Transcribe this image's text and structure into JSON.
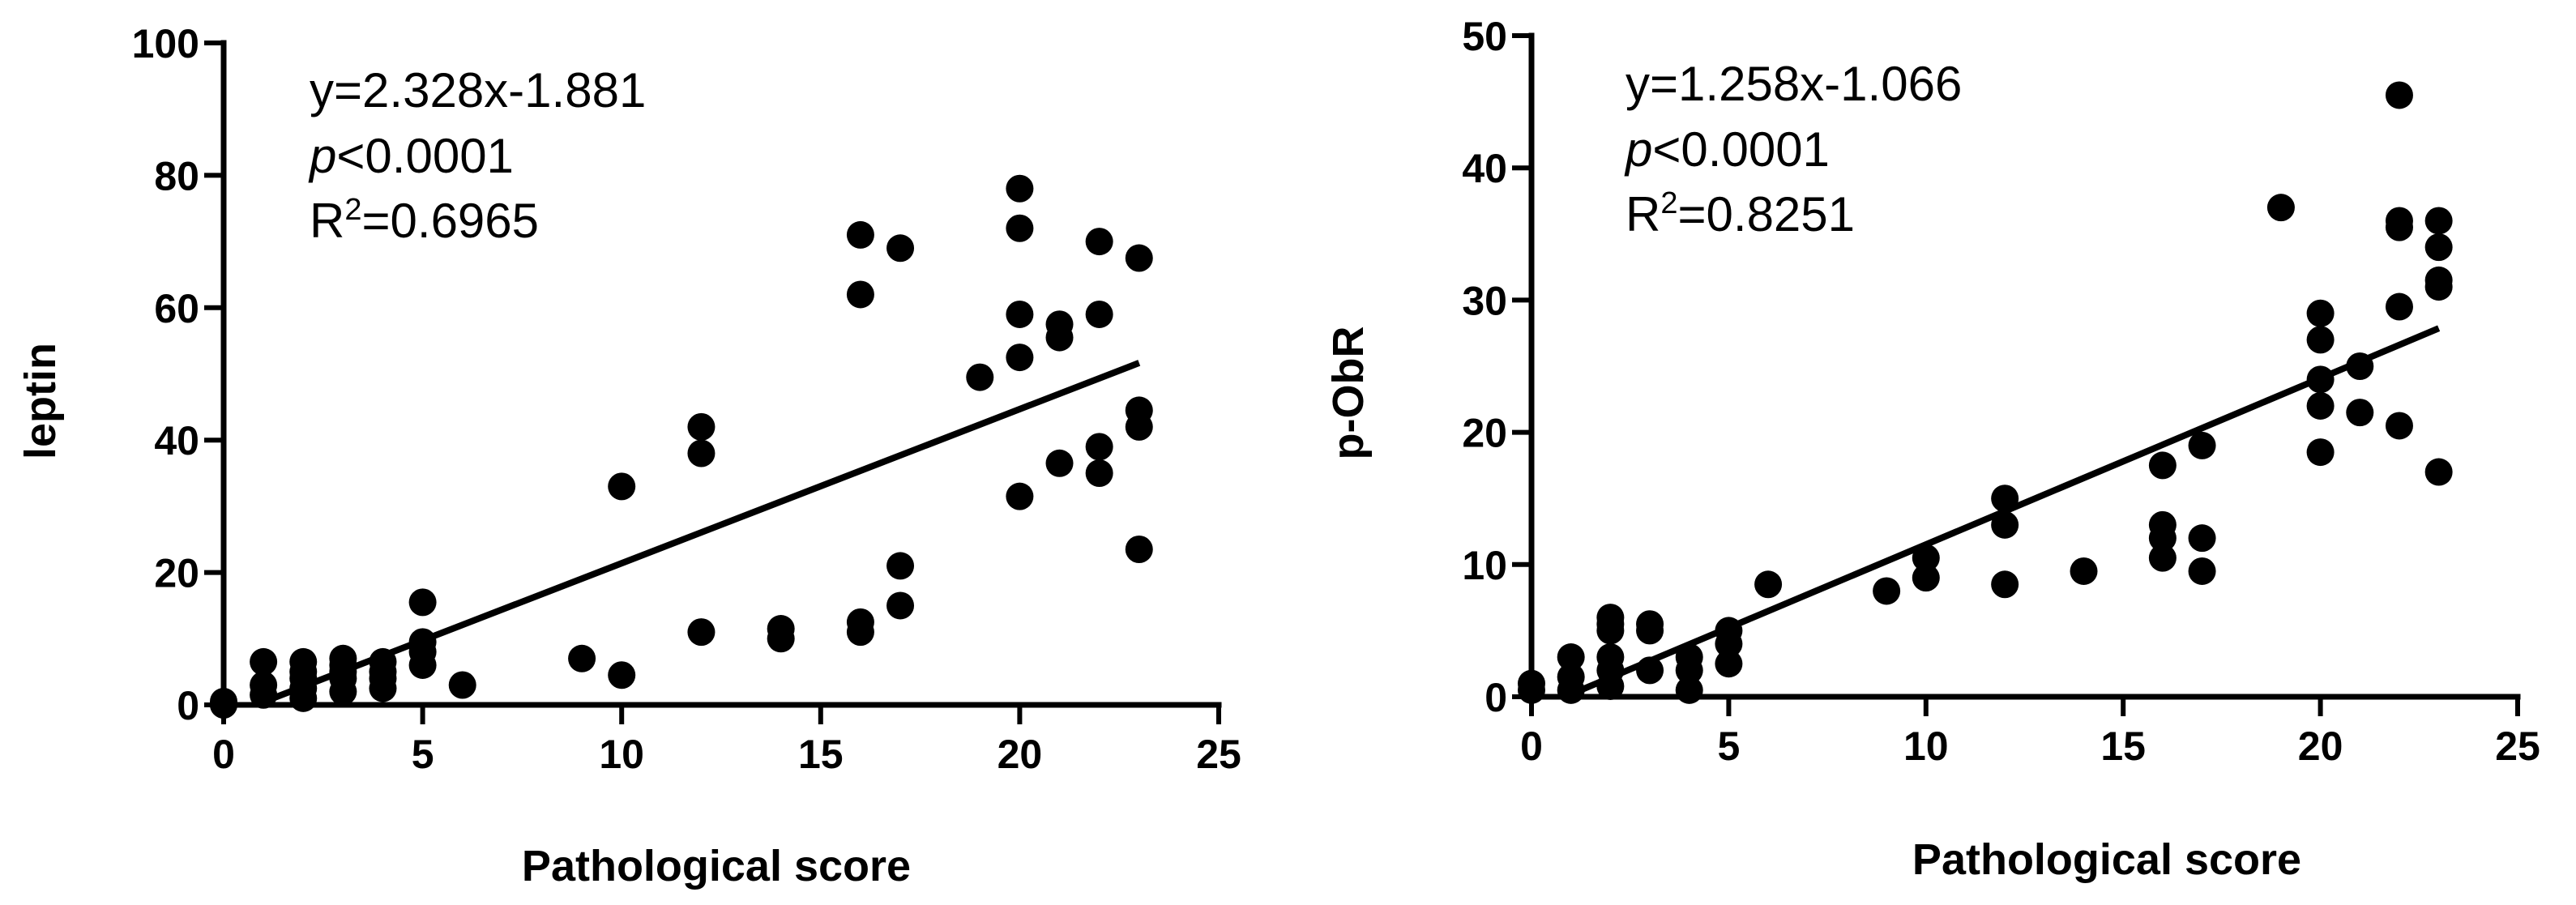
{
  "chart_data": [
    {
      "type": "scatter",
      "xlabel": "Pathological score",
      "ylabel": "leptin",
      "xlim": [
        0,
        25
      ],
      "ylim": [
        0,
        100
      ],
      "x_ticks": [
        0,
        5,
        10,
        15,
        20,
        25
      ],
      "y_ticks": [
        0,
        20,
        40,
        60,
        80,
        100
      ],
      "grid": false,
      "annotations": {
        "equation": "y=2.328x-1.881",
        "p_symbol": "p",
        "p_value": "<0.0001",
        "r2_prefix": "R",
        "r2_sup": "2",
        "r2_value": "=0.6965"
      },
      "fit": {
        "slope": 2.328,
        "intercept": -1.881,
        "x_range": [
          1,
          23
        ]
      },
      "x": [
        0,
        0,
        1,
        1,
        1,
        2,
        2,
        2,
        2,
        2,
        3,
        3,
        3,
        3,
        3,
        4,
        4,
        4,
        4,
        5,
        5,
        5,
        5,
        6,
        9,
        10,
        10,
        12,
        12,
        12,
        14,
        14,
        16,
        16,
        16,
        16,
        17,
        17,
        17,
        19,
        20,
        20,
        20,
        20,
        20,
        21,
        21,
        21,
        22,
        22,
        22,
        22,
        23,
        23,
        23,
        23
      ],
      "y": [
        0,
        0.5,
        1.5,
        3,
        6.5,
        1,
        2.5,
        4,
        5,
        6.5,
        2,
        4,
        5,
        6,
        7,
        2.5,
        4,
        5,
        6.5,
        6,
        8,
        9.5,
        15.5,
        3,
        7,
        4.5,
        33,
        11,
        38,
        42,
        10,
        11.5,
        11,
        12.5,
        62,
        71,
        15,
        21,
        69,
        49.5,
        31.5,
        52.5,
        59,
        72,
        78,
        36.5,
        55.5,
        57.5,
        35,
        39,
        59,
        70,
        23.5,
        42,
        44.5,
        67.5
      ]
    },
    {
      "type": "scatter",
      "xlabel": "Pathological score",
      "ylabel": "p-ObR",
      "xlim": [
        0,
        25
      ],
      "ylim": [
        0,
        50
      ],
      "x_ticks": [
        0,
        5,
        10,
        15,
        20,
        25
      ],
      "y_ticks": [
        0,
        10,
        20,
        30,
        40,
        50
      ],
      "grid": false,
      "annotations": {
        "equation": "y=1.258x-1.066",
        "p_symbol": "p",
        "p_value": "<0.0001",
        "r2_prefix": "R",
        "r2_sup": "2",
        "r2_value": "=0.8251"
      },
      "fit": {
        "slope": 1.258,
        "intercept": -1.066,
        "x_range": [
          1,
          23
        ]
      },
      "x": [
        0,
        0,
        1,
        1,
        1,
        2,
        2,
        2,
        2,
        2,
        2,
        3,
        3,
        3,
        4,
        4,
        4,
        5,
        5,
        5,
        6,
        9,
        10,
        10,
        12,
        12,
        12,
        14,
        16,
        16,
        16,
        16,
        17,
        17,
        17,
        19,
        20,
        20,
        20,
        20,
        20,
        21,
        21,
        22,
        22,
        22,
        22,
        22,
        23,
        23,
        23,
        23,
        23
      ],
      "y": [
        0.5,
        1,
        0.5,
        1.5,
        3,
        0.8,
        2,
        3,
        5,
        6,
        5.5,
        2,
        5,
        5.5,
        0.5,
        2,
        3,
        2.5,
        4,
        5,
        8.5,
        8,
        9,
        10.5,
        8.5,
        13,
        15,
        9.5,
        10.5,
        12,
        13,
        17.5,
        9.5,
        12,
        19,
        37,
        18.5,
        22,
        24,
        27,
        29,
        21.5,
        25,
        20.5,
        29.5,
        35.5,
        36,
        45.5,
        17,
        31,
        31.5,
        34,
        36
      ]
    }
  ]
}
